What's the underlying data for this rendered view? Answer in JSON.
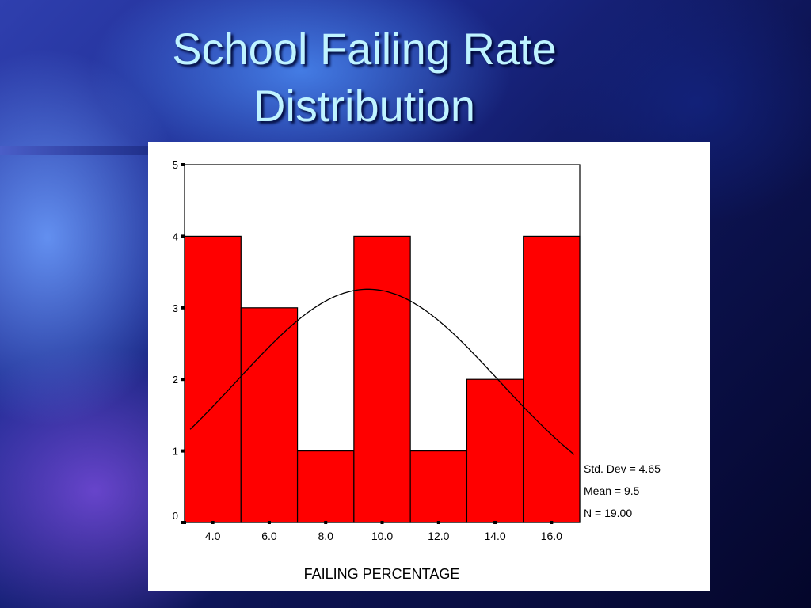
{
  "slide": {
    "title_line1": "School Failing Rate",
    "title_line2": "Distribution"
  },
  "stats": {
    "std_dev": "Std. Dev = 4.65",
    "mean": "Mean = 9.5",
    "n": "N = 19.00"
  },
  "colors": {
    "bar_fill": "#ff0000",
    "bar_stroke": "#000000",
    "curve": "#000000",
    "title": "#bff3ff"
  },
  "chart_data": {
    "type": "bar",
    "title": "",
    "xlabel": "FAILING PERCENTAGE",
    "ylabel": "",
    "categories": [
      "4.0",
      "6.0",
      "8.0",
      "10.0",
      "12.0",
      "14.0",
      "16.0"
    ],
    "values": [
      4,
      3,
      1,
      4,
      1,
      2,
      4
    ],
    "ylim": [
      0,
      5
    ],
    "yticks": [
      "0",
      "1",
      "2",
      "3",
      "4",
      "5"
    ],
    "normal_curve": {
      "mean": 9.5,
      "std_dev": 4.65,
      "n": 19,
      "bin_width": 2
    },
    "grid": false
  }
}
